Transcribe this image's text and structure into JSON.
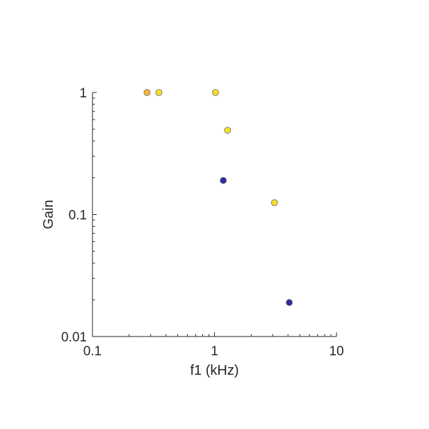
{
  "chart_data": {
    "type": "scatter",
    "title": "",
    "xlabel": "f1 (kHz)",
    "ylabel": "Gain",
    "xscale": "log",
    "yscale": "log",
    "xlim": [
      0.1,
      10
    ],
    "ylim": [
      0.01,
      1
    ],
    "xticks": [
      0.1,
      1,
      10
    ],
    "xtick_labels": [
      "0.1",
      "1",
      "10"
    ],
    "yticks": [
      0.01,
      0.1,
      1
    ],
    "ytick_labels": [
      "0.01",
      "0.1",
      "1"
    ],
    "grid": false,
    "legend": "none",
    "points": [
      {
        "x": 0.28,
        "y": 1.0,
        "color": "#F4B63A"
      },
      {
        "x": 0.35,
        "y": 1.0,
        "color": "#F8E02A"
      },
      {
        "x": 1.02,
        "y": 1.0,
        "color": "#F8DC2C"
      },
      {
        "x": 1.28,
        "y": 0.49,
        "color": "#F8E02A"
      },
      {
        "x": 1.18,
        "y": 0.19,
        "color": "#2F2BA0"
      },
      {
        "x": 3.1,
        "y": 0.125,
        "color": "#F8DC2C"
      },
      {
        "x": 4.1,
        "y": 0.019,
        "color": "#2F2BA0"
      }
    ]
  }
}
